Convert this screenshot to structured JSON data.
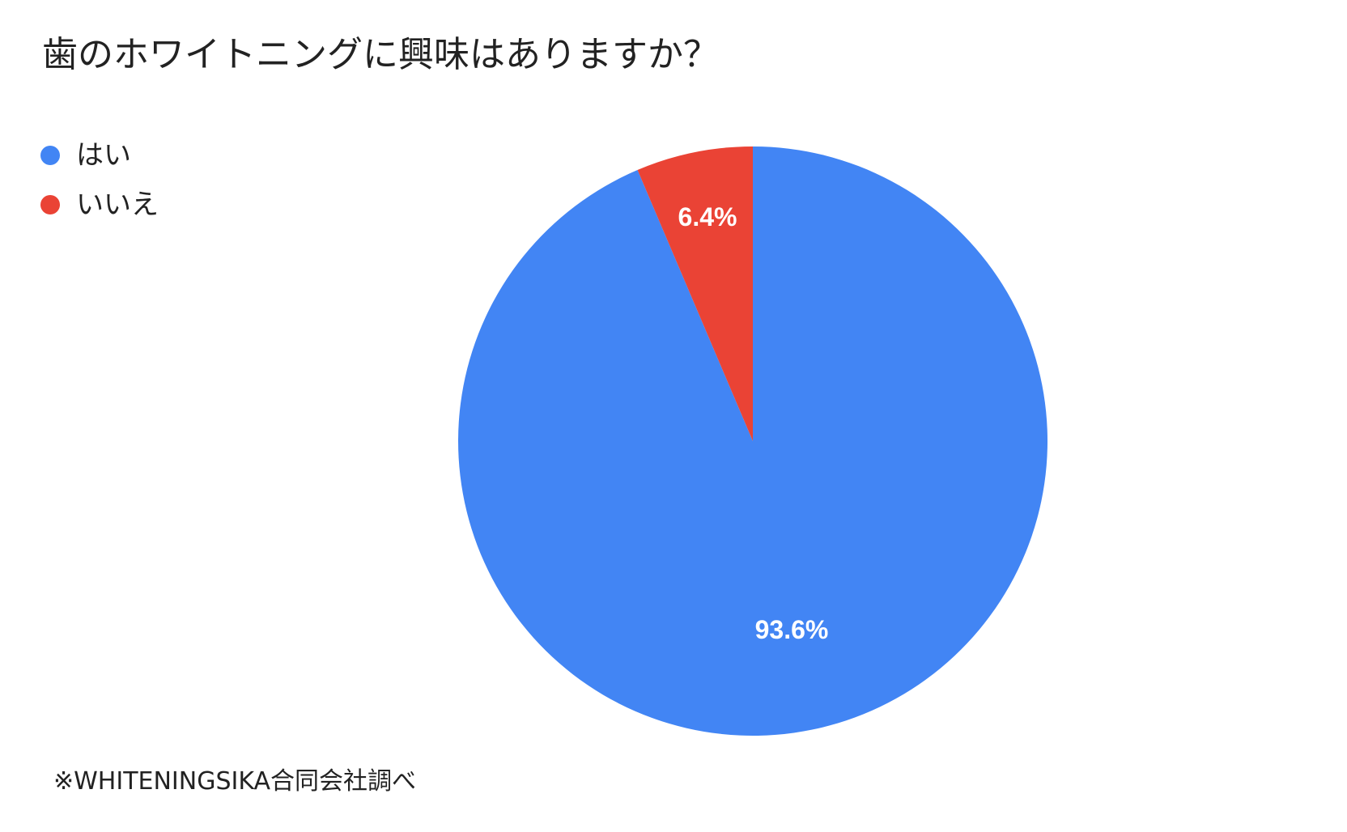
{
  "chart_data": {
    "type": "pie",
    "title": "歯のホワイトニングに興味はありますか？",
    "categories": [
      "はい",
      "いいえ"
    ],
    "values": [
      93.6,
      6.4
    ],
    "data_labels": [
      "93.6%",
      "6.4%"
    ],
    "colors": [
      "#4285F4",
      "#EA4335"
    ],
    "legend_position": "top-left"
  },
  "footnote": "※WHITENINGSIKA合同会社調べ"
}
